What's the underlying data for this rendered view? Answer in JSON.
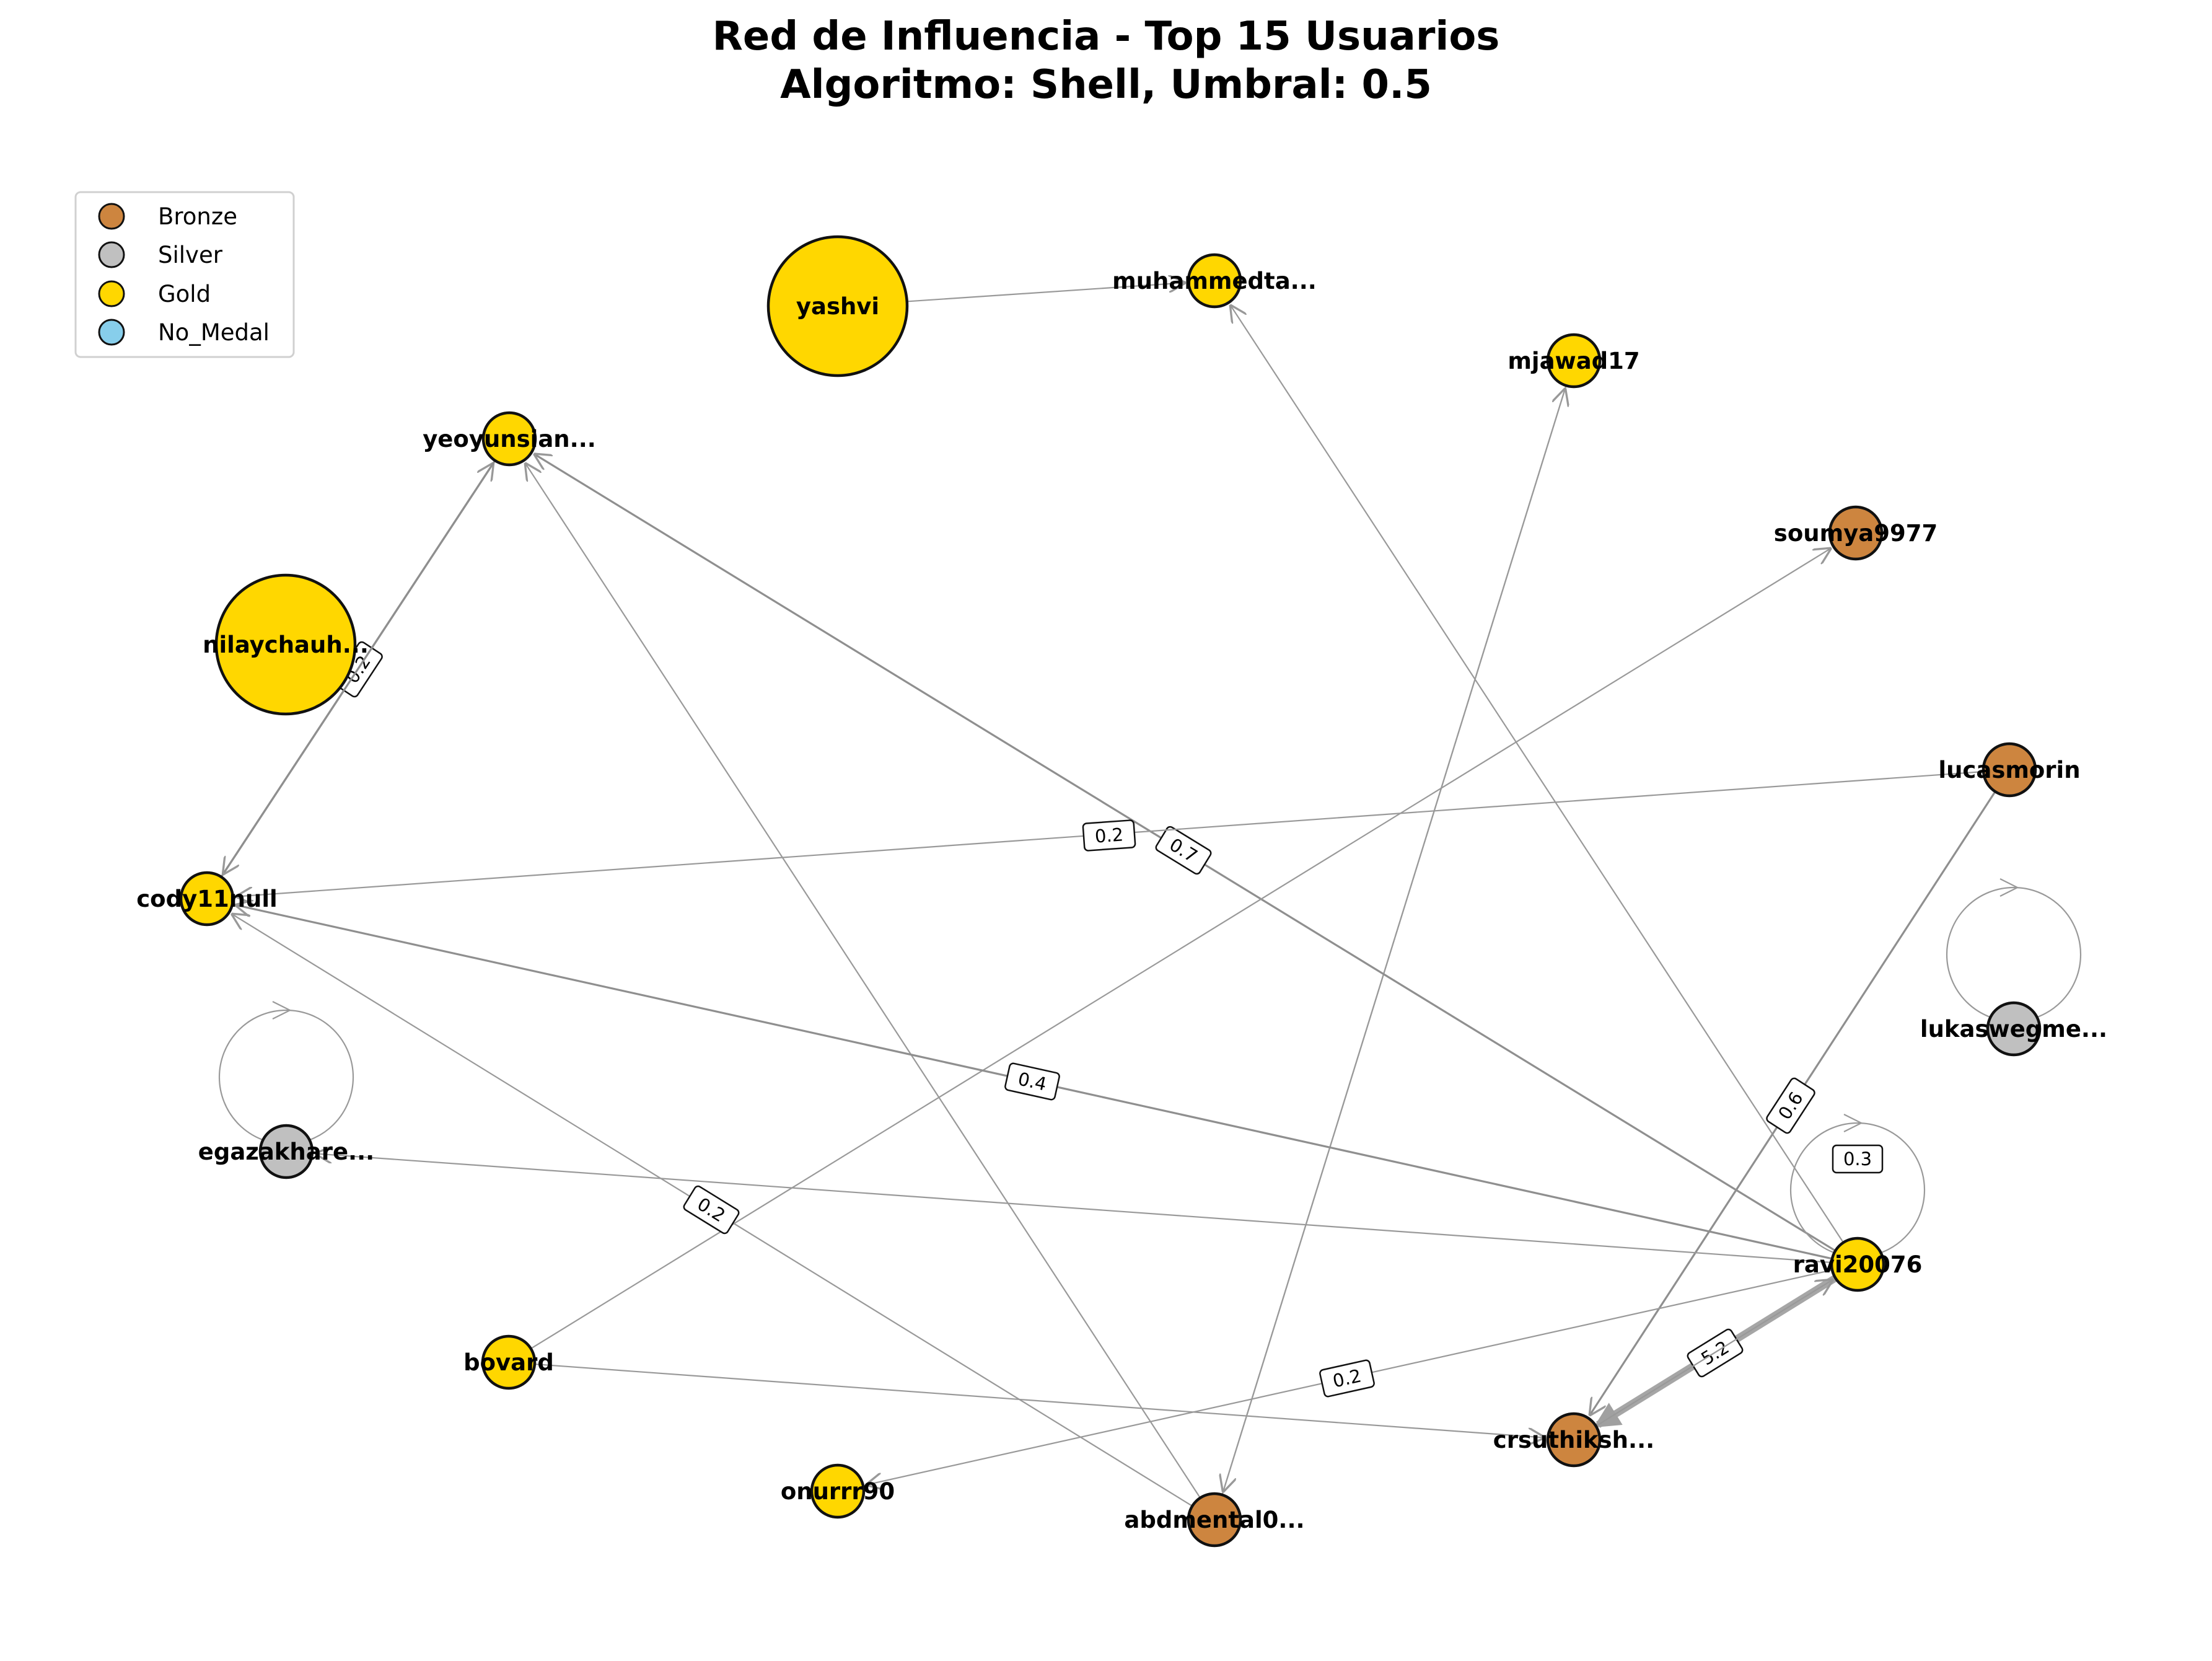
{
  "title": {
    "line1": "Red de Influencia - Top 15 Usuarios",
    "line2": "Algoritmo: Shell, Umbral: 0.5"
  },
  "legend": [
    {
      "label": "Bronze",
      "color": "#CD853F"
    },
    {
      "label": "Silver",
      "color": "#C0C0C0"
    },
    {
      "label": "Gold",
      "color": "#FFD700"
    },
    {
      "label": "No_Medal",
      "color": "#87CEEB"
    }
  ],
  "nodes": [
    {
      "id": "yashvi",
      "label": "yashvi",
      "medal": "Gold",
      "size": "large"
    },
    {
      "id": "muhammedta",
      "label": "muhammedta...",
      "medal": "Gold",
      "size": "small"
    },
    {
      "id": "mjawad17",
      "label": "mjawad17",
      "medal": "Gold",
      "size": "small"
    },
    {
      "id": "yeoyunsian",
      "label": "yeoyunsian...",
      "medal": "Gold",
      "size": "small"
    },
    {
      "id": "soumya9977",
      "label": "soumya9977",
      "medal": "Bronze",
      "size": "small"
    },
    {
      "id": "nilaychauh",
      "label": "nilaychauh...",
      "medal": "Gold",
      "size": "large"
    },
    {
      "id": "lucasmorin",
      "label": "lucasmorin",
      "medal": "Bronze",
      "size": "small"
    },
    {
      "id": "cody11null",
      "label": "cody11null",
      "medal": "Gold",
      "size": "small"
    },
    {
      "id": "lukaswegme",
      "label": "lukaswegme...",
      "medal": "Silver",
      "size": "small"
    },
    {
      "id": "egazakhare",
      "label": "egazakhare...",
      "medal": "Silver",
      "size": "small"
    },
    {
      "id": "ravi20076",
      "label": "ravi20076",
      "medal": "Gold",
      "size": "small"
    },
    {
      "id": "bovard",
      "label": "bovard",
      "medal": "Gold",
      "size": "small"
    },
    {
      "id": "crsuthiksh",
      "label": "crsuthiksh...",
      "medal": "Bronze",
      "size": "small"
    },
    {
      "id": "onurrr90",
      "label": "onurrr90",
      "medal": "Gold",
      "size": "small"
    },
    {
      "id": "abdmental0",
      "label": "abdmental0...",
      "medal": "Bronze",
      "size": "small"
    }
  ],
  "edges": [
    {
      "source": "yashvi",
      "target": "muhammedta",
      "weight": "",
      "strength": "thin"
    },
    {
      "source": "ravi20076",
      "target": "muhammedta",
      "weight": "",
      "strength": "thin"
    },
    {
      "source": "abdmental0",
      "target": "mjawad17",
      "weight": "",
      "strength": "thin"
    },
    {
      "source": "mjawad17",
      "target": "abdmental0",
      "weight": "",
      "strength": "thin"
    },
    {
      "source": "cody11null",
      "target": "yeoyunsian",
      "weight": "0.2",
      "strength": "medium"
    },
    {
      "source": "yeoyunsian",
      "target": "cody11null",
      "weight": "",
      "strength": "medium"
    },
    {
      "source": "ravi20076",
      "target": "yeoyunsian",
      "weight": "0.7",
      "strength": "medium"
    },
    {
      "source": "abdmental0",
      "target": "yeoyunsian",
      "weight": "",
      "strength": "thin"
    },
    {
      "source": "bovard",
      "target": "soumya9977",
      "weight": "",
      "strength": "thin"
    },
    {
      "source": "lucasmorin",
      "target": "cody11null",
      "weight": "0.2",
      "strength": "thin"
    },
    {
      "source": "ravi20076",
      "target": "cody11null",
      "weight": "0.4",
      "strength": "medium"
    },
    {
      "source": "abdmental0",
      "target": "cody11null",
      "weight": "0.2",
      "strength": "thin"
    },
    {
      "source": "lucasmorin",
      "target": "crsuthiksh",
      "weight": "0.6",
      "strength": "medium"
    },
    {
      "source": "ravi20076",
      "target": "egazakhare",
      "weight": "",
      "strength": "thin"
    },
    {
      "source": "ravi20076",
      "target": "onurrr90",
      "weight": "0.2",
      "strength": "thin"
    },
    {
      "source": "ravi20076",
      "target": "crsuthiksh",
      "weight": "5.2",
      "strength": "thick"
    },
    {
      "source": "bovard",
      "target": "crsuthiksh",
      "weight": "",
      "strength": "thin"
    },
    {
      "source": "crsuthiksh",
      "target": "ravi20076",
      "weight": "",
      "strength": "thin"
    },
    {
      "source": "ravi20076",
      "target": "ravi20076",
      "weight": "0.3",
      "strength": "thin"
    },
    {
      "source": "egazakhare",
      "target": "egazakhare",
      "weight": "",
      "strength": "thin"
    },
    {
      "source": "lukaswegme",
      "target": "lukaswegme",
      "weight": "",
      "strength": "thin"
    }
  ]
}
